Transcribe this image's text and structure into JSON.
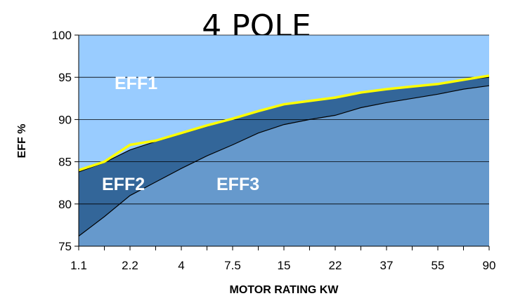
{
  "chart_data": {
    "type": "area",
    "title": "4 POLE",
    "xlabel": "MOTOR RATING KW",
    "ylabel": "EFF %",
    "ylim": [
      75,
      100
    ],
    "yticks": [
      "75",
      "80",
      "85",
      "90",
      "95",
      "100"
    ],
    "x_tick_labels": [
      "1.1",
      "2.2",
      "4",
      "7.5",
      "15",
      "22",
      "37",
      "55",
      "90"
    ],
    "x_points": [
      "1.1",
      "1.5",
      "2.2",
      "3",
      "4",
      "5.5",
      "7.5",
      "11",
      "15",
      "18.5",
      "22",
      "30",
      "37",
      "45",
      "55",
      "75",
      "90"
    ],
    "grid": true,
    "colors": {
      "eff1": "#99ccff",
      "eff2": "#336699",
      "eff3": "#6699cc",
      "eff1_line": "#ffff00",
      "grid": "#000000"
    },
    "series": [
      {
        "name": "EFF1",
        "values": [
          84.0,
          85.0,
          87.0,
          87.5,
          88.4,
          89.3,
          90.1,
          91.0,
          91.8,
          92.2,
          92.6,
          93.2,
          93.6,
          93.9,
          94.2,
          94.7,
          95.2
        ]
      },
      {
        "name": "EFF2",
        "values": [
          83.8,
          84.9,
          86.4,
          87.4,
          88.3,
          89.2,
          90.1,
          91.0,
          91.8,
          92.2,
          92.6,
          93.2,
          93.6,
          93.9,
          94.2,
          94.7,
          95.0
        ]
      },
      {
        "name": "EFF3",
        "values": [
          76.2,
          78.5,
          81.0,
          82.6,
          84.2,
          85.7,
          87.0,
          88.4,
          89.4,
          90.0,
          90.5,
          91.4,
          92.0,
          92.5,
          93.0,
          93.6,
          94.0
        ]
      }
    ],
    "region_labels": [
      "EFF1",
      "EFF2",
      "EFF3"
    ]
  }
}
